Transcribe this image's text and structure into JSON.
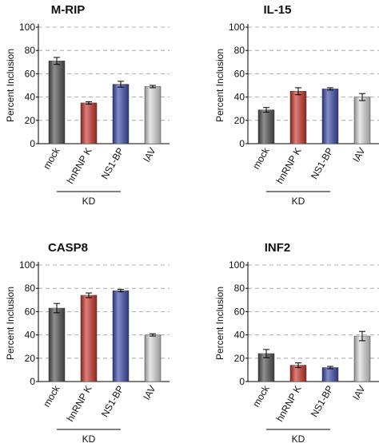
{
  "chart_data": [
    {
      "type": "bar",
      "title": "M-RIP",
      "ylabel": "Percent Inclusion",
      "annotation": "KD",
      "categories": [
        "mock",
        "hnRNP K",
        "NS1-BP",
        "IAV"
      ],
      "values": [
        71,
        35,
        51,
        49
      ],
      "errors": [
        3,
        1,
        2.5,
        1
      ],
      "colors": [
        "#555555",
        "#cc3a30",
        "#4050b0",
        "#dddddd"
      ],
      "ylim": [
        0,
        100
      ],
      "yticks": [
        0,
        20,
        40,
        60,
        80,
        100
      ],
      "grid": true
    },
    {
      "type": "bar",
      "title": "IL-15",
      "ylabel": "Percent Inclusion",
      "annotation": "KD",
      "categories": [
        "mock",
        "hnRNP K",
        "NS1-BP",
        "IAV"
      ],
      "values": [
        29,
        45,
        47,
        40
      ],
      "errors": [
        2,
        3,
        1,
        3
      ],
      "colors": [
        "#555555",
        "#cc3a30",
        "#4050b0",
        "#dddddd"
      ],
      "ylim": [
        0,
        100
      ],
      "yticks": [
        0,
        20,
        40,
        60,
        80,
        100
      ],
      "grid": true
    },
    {
      "type": "bar",
      "title": "CASP8",
      "ylabel": "Percent Inclusion",
      "annotation": "KD",
      "categories": [
        "mock",
        "hnRNP K",
        "NS1-BP",
        "IAV"
      ],
      "values": [
        63,
        74,
        78,
        40
      ],
      "errors": [
        4,
        2,
        1,
        1
      ],
      "colors": [
        "#555555",
        "#cc3a30",
        "#4050b0",
        "#dddddd"
      ],
      "ylim": [
        0,
        100
      ],
      "yticks": [
        0,
        20,
        40,
        60,
        80,
        100
      ],
      "grid": true
    },
    {
      "type": "bar",
      "title": "INF2",
      "ylabel": "Percent Inclusion",
      "annotation": "KD",
      "categories": [
        "mock",
        "hnRNP K",
        "NS1-BP",
        "IAV"
      ],
      "values": [
        24,
        14,
        12,
        39
      ],
      "errors": [
        3.5,
        2,
        1,
        4
      ],
      "colors": [
        "#555555",
        "#cc3a30",
        "#4050b0",
        "#dddddd"
      ],
      "ylim": [
        0,
        100
      ],
      "yticks": [
        0,
        20,
        40,
        60,
        80,
        100
      ],
      "grid": true
    }
  ]
}
